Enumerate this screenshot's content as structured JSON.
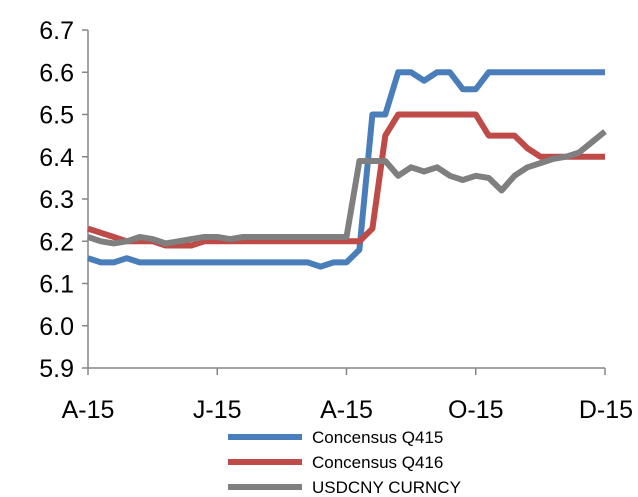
{
  "chart_data": {
    "type": "line",
    "title": "",
    "xlabel": "",
    "ylabel": "",
    "ylim": [
      5.9,
      6.7
    ],
    "y_ticks": [
      "5.9",
      "6.0",
      "6.1",
      "6.2",
      "6.3",
      "6.4",
      "6.5",
      "6.6",
      "6.7"
    ],
    "x_ticks": [
      "A-15",
      "J-15",
      "A-15",
      "O-15",
      "D-15"
    ],
    "grid": false,
    "legend_position": "bottom",
    "series": [
      {
        "name": "Concensus Q415",
        "color": "#4a7ebb",
        "values": [
          6.16,
          6.15,
          6.15,
          6.16,
          6.15,
          6.15,
          6.15,
          6.15,
          6.15,
          6.15,
          6.15,
          6.15,
          6.15,
          6.15,
          6.15,
          6.15,
          6.15,
          6.15,
          6.14,
          6.15,
          6.15,
          6.18,
          6.5,
          6.5,
          6.6,
          6.6,
          6.58,
          6.6,
          6.6,
          6.56,
          6.56,
          6.6,
          6.6,
          6.6,
          6.6,
          6.6,
          6.6,
          6.6,
          6.6,
          6.6,
          6.6
        ]
      },
      {
        "name": "Concensus Q416",
        "color": "#be4b48",
        "values": [
          6.23,
          6.22,
          6.21,
          6.2,
          6.2,
          6.2,
          6.19,
          6.19,
          6.19,
          6.2,
          6.2,
          6.2,
          6.2,
          6.2,
          6.2,
          6.2,
          6.2,
          6.2,
          6.2,
          6.2,
          6.2,
          6.2,
          6.23,
          6.45,
          6.5,
          6.5,
          6.5,
          6.5,
          6.5,
          6.5,
          6.5,
          6.45,
          6.45,
          6.45,
          6.42,
          6.4,
          6.4,
          6.4,
          6.4,
          6.4,
          6.4
        ]
      },
      {
        "name": "USDCNY CURNCY",
        "color": "#7f7f7f",
        "values": [
          6.21,
          6.2,
          6.195,
          6.2,
          6.21,
          6.205,
          6.195,
          6.2,
          6.205,
          6.21,
          6.21,
          6.205,
          6.21,
          6.21,
          6.21,
          6.21,
          6.21,
          6.21,
          6.21,
          6.21,
          6.21,
          6.39,
          6.39,
          6.39,
          6.355,
          6.375,
          6.365,
          6.375,
          6.355,
          6.345,
          6.355,
          6.35,
          6.32,
          6.355,
          6.375,
          6.385,
          6.395,
          6.4,
          6.41,
          6.435,
          6.46
        ]
      }
    ]
  }
}
